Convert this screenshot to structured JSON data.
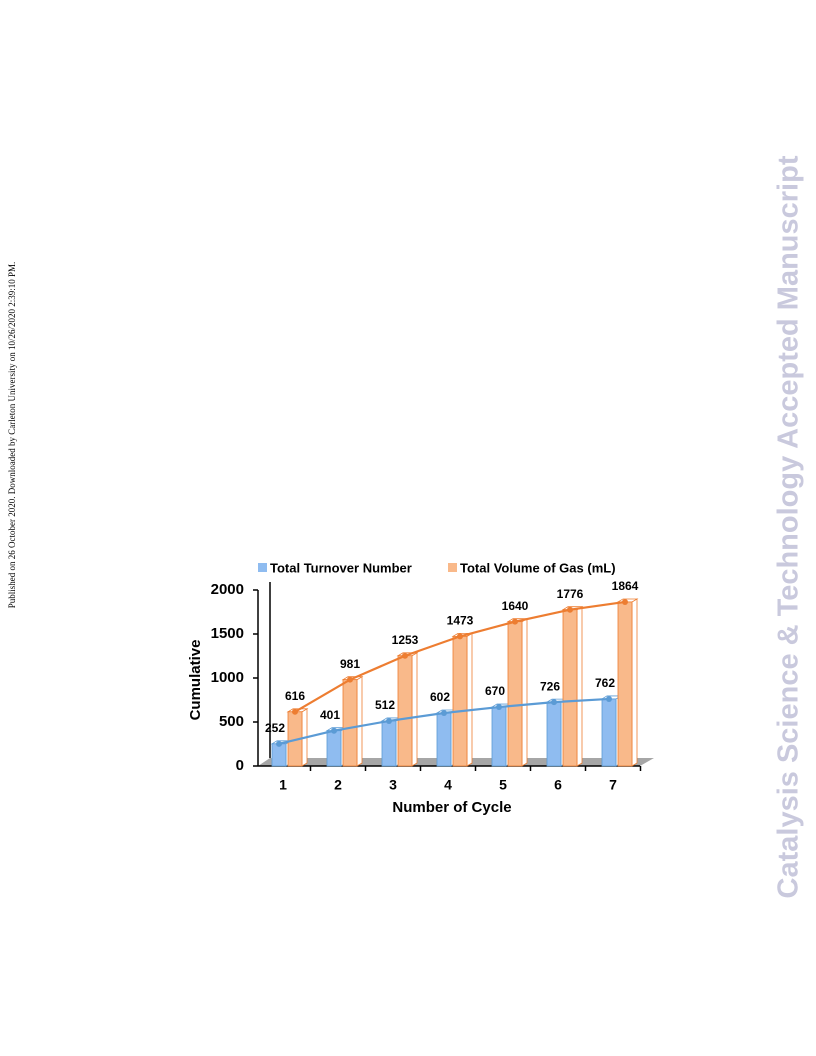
{
  "side_note": "Published on 26 October 2020. Downloaded by Carleton University on 10/26/2020 2:39:10 PM.",
  "watermark": "Catalysis Science & Technology Accepted Manuscript",
  "chart_data": {
    "type": "bar",
    "x_label": "Number of Cycle",
    "y_label": "Cumulative",
    "categories": [
      "1",
      "2",
      "3",
      "4",
      "5",
      "6",
      "7"
    ],
    "series": [
      {
        "name": "Total Turnover Number",
        "color": "#8fbcf0",
        "line_color": "#5b9bd5",
        "values": [
          252,
          401,
          512,
          602,
          670,
          726,
          762
        ]
      },
      {
        "name": "Total Volume of Gas (mL)",
        "color": "#f9b98a",
        "line_color": "#ed7d31",
        "values": [
          616,
          981,
          1253,
          1473,
          1640,
          1776,
          1864
        ]
      }
    ],
    "ylim": [
      0,
      2000
    ],
    "yticks": [
      0,
      500,
      1000,
      1500,
      2000
    ],
    "grid": false,
    "legend": "top"
  }
}
